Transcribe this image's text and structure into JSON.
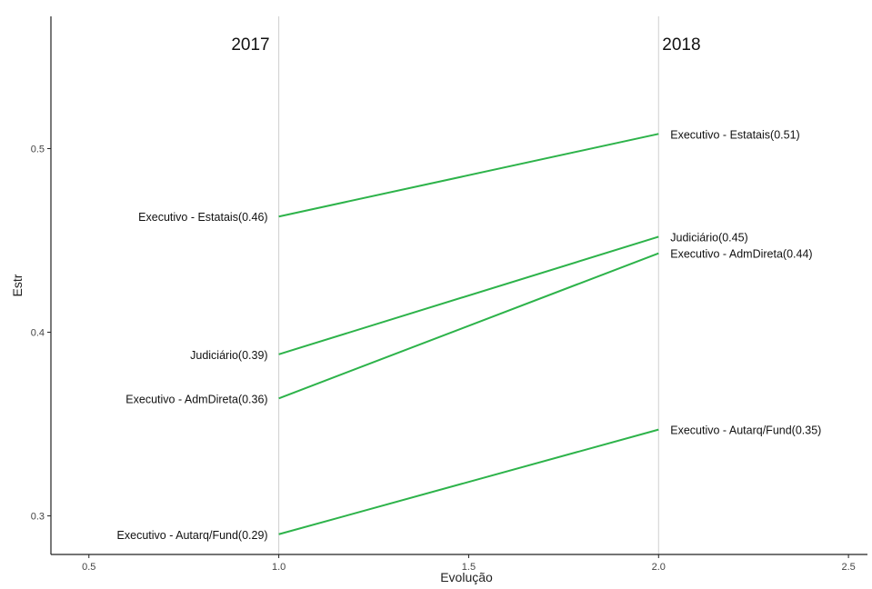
{
  "chart_data": {
    "type": "line",
    "xlabel": "Evolução",
    "ylabel": "Estr",
    "xlim": [
      0.4,
      2.55
    ],
    "ylim": [
      0.279,
      0.572
    ],
    "xticks": [
      {
        "value": 0.5,
        "label": "0.5"
      },
      {
        "value": 1.0,
        "label": "1.0"
      },
      {
        "value": 1.5,
        "label": "1.5"
      },
      {
        "value": 2.0,
        "label": "2.0"
      },
      {
        "value": 2.5,
        "label": "2.5"
      }
    ],
    "yticks": [
      {
        "value": 0.3,
        "label": "0.3"
      },
      {
        "value": 0.4,
        "label": "0.4"
      },
      {
        "value": 0.5,
        "label": "0.5"
      }
    ],
    "x": [
      1,
      2
    ],
    "column_headers": [
      "2017",
      "2018"
    ],
    "series": [
      {
        "name": "Executivo - Estatais",
        "values": [
          0.463,
          0.508
        ],
        "left_label": "Executivo - Estatais(0.46)",
        "right_label": "Executivo - Estatais(0.51)"
      },
      {
        "name": "Judiciário",
        "values": [
          0.388,
          0.452
        ],
        "left_label": "Judiciário(0.39)",
        "right_label": "Judiciário(0.45)"
      },
      {
        "name": "Executivo - AdmDireta",
        "values": [
          0.364,
          0.443
        ],
        "left_label": "Executivo - AdmDireta(0.36)",
        "right_label": "Executivo - AdmDireta(0.44)"
      },
      {
        "name": "Executivo - Autarq/Fund",
        "values": [
          0.29,
          0.347
        ],
        "left_label": "Executivo - Autarq/Fund(0.29)",
        "right_label": "Executivo - Autarq/Fund(0.35)"
      }
    ],
    "line_color": "#2db34a",
    "grid": false,
    "legend": "none"
  }
}
